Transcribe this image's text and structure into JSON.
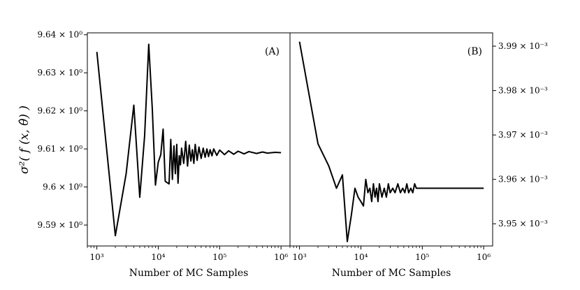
{
  "chart_data": [
    {
      "type": "line",
      "panel_label": "(A)",
      "xlabel": "Number of MC Samples",
      "ylabel": "σ²( f (x, θ̂) )",
      "xscale": "log",
      "xlim": [
        700,
        1400000
      ],
      "ylim": [
        9.5845,
        9.6405
      ],
      "x_tick_labels": [
        "10³",
        "10⁴",
        "10⁵",
        "10⁶"
      ],
      "x_tick_values": [
        1000,
        10000,
        100000,
        1000000
      ],
      "y_tick_values": [
        9.59,
        9.6,
        9.61,
        9.62,
        9.63,
        9.64
      ],
      "y_tick_labels": [
        "9.59 × 10⁰",
        "9.6 × 10⁰",
        "9.61 × 10⁰",
        "9.62 × 10⁰",
        "9.63 × 10⁰",
        "9.64 × 10⁰"
      ],
      "y_axis_side": "left",
      "series": [
        {
          "name": "variance",
          "x": [
            1000,
            2000,
            3000,
            4000,
            5000,
            6000,
            7000,
            8000,
            9000,
            10000,
            11000,
            12000,
            13000,
            15000,
            16000,
            17000,
            18000,
            19000,
            20000,
            21000,
            22000,
            23000,
            24000,
            26000,
            28000,
            30000,
            32000,
            34000,
            36000,
            38000,
            40000,
            43000,
            46000,
            50000,
            54000,
            58000,
            62000,
            66000,
            70000,
            75000,
            80000,
            90000,
            100000,
            120000,
            140000,
            170000,
            200000,
            250000,
            300000,
            400000,
            500000,
            600000,
            800000,
            1000000
          ],
          "y": [
            9.6355,
            9.5872,
            9.6035,
            9.6215,
            9.5973,
            9.6135,
            9.6375,
            9.6205,
            9.6005,
            9.6065,
            9.6085,
            9.6152,
            9.6015,
            9.6008,
            9.6125,
            9.602,
            9.6108,
            9.6035,
            9.6112,
            9.601,
            9.6082,
            9.6058,
            9.6102,
            9.6062,
            9.612,
            9.6055,
            9.611,
            9.6068,
            9.6098,
            9.6062,
            9.6112,
            9.607,
            9.6105,
            9.6075,
            9.6102,
            9.6078,
            9.61,
            9.608,
            9.6098,
            9.6082,
            9.61,
            9.6083,
            9.6097,
            9.6085,
            9.6095,
            9.6086,
            9.6094,
            9.6087,
            9.6093,
            9.6088,
            9.6092,
            9.6089,
            9.6091,
            9.609
          ]
        }
      ]
    },
    {
      "type": "line",
      "panel_label": "(B)",
      "xlabel": "Number of MC Samples",
      "xscale": "log",
      "xlim": [
        700,
        1400000
      ],
      "ylim": [
        0.003945,
        0.003993
      ],
      "x_tick_labels": [
        "10³",
        "10⁴",
        "10⁵",
        "10⁶"
      ],
      "x_tick_values": [
        1000,
        10000,
        100000,
        1000000
      ],
      "y_tick_values": [
        0.00395,
        0.00396,
        0.00397,
        0.00398,
        0.00399
      ],
      "y_tick_labels": [
        "3.95 × 10⁻³",
        "3.96 × 10⁻³",
        "3.97 × 10⁻³",
        "3.98 × 10⁻³",
        "3.99 × 10⁻³"
      ],
      "y_axis_side": "right",
      "series": [
        {
          "name": "variance",
          "x": [
            1000,
            2000,
            3000,
            4000,
            5000,
            6000,
            7000,
            8000,
            9000,
            10000,
            11000,
            12000,
            13000,
            14000,
            15000,
            16000,
            17000,
            18000,
            19000,
            20000,
            22000,
            24000,
            26000,
            28000,
            30000,
            33000,
            36000,
            40000,
            44000,
            48000,
            52000,
            56000,
            60000,
            65000,
            70000,
            75000,
            80000,
            90000,
            100000,
            120000,
            150000,
            200000,
            300000,
            500000,
            700000,
            1000000
          ],
          "y": [
            0.003991,
            0.003968,
            0.003963,
            0.003958,
            0.003961,
            0.003946,
            0.003952,
            0.003958,
            0.003956,
            0.003955,
            0.003954,
            0.00396,
            0.003957,
            0.003958,
            0.003955,
            0.003959,
            0.003956,
            0.003958,
            0.003955,
            0.003959,
            0.003956,
            0.003958,
            0.003956,
            0.003959,
            0.003957,
            0.003958,
            0.003957,
            0.003959,
            0.003957,
            0.003958,
            0.003957,
            0.003959,
            0.003957,
            0.003958,
            0.003957,
            0.003959,
            0.003958,
            0.003958,
            0.003958,
            0.003958,
            0.003958,
            0.003958,
            0.003958,
            0.003958,
            0.003958,
            0.003958
          ]
        }
      ]
    }
  ]
}
